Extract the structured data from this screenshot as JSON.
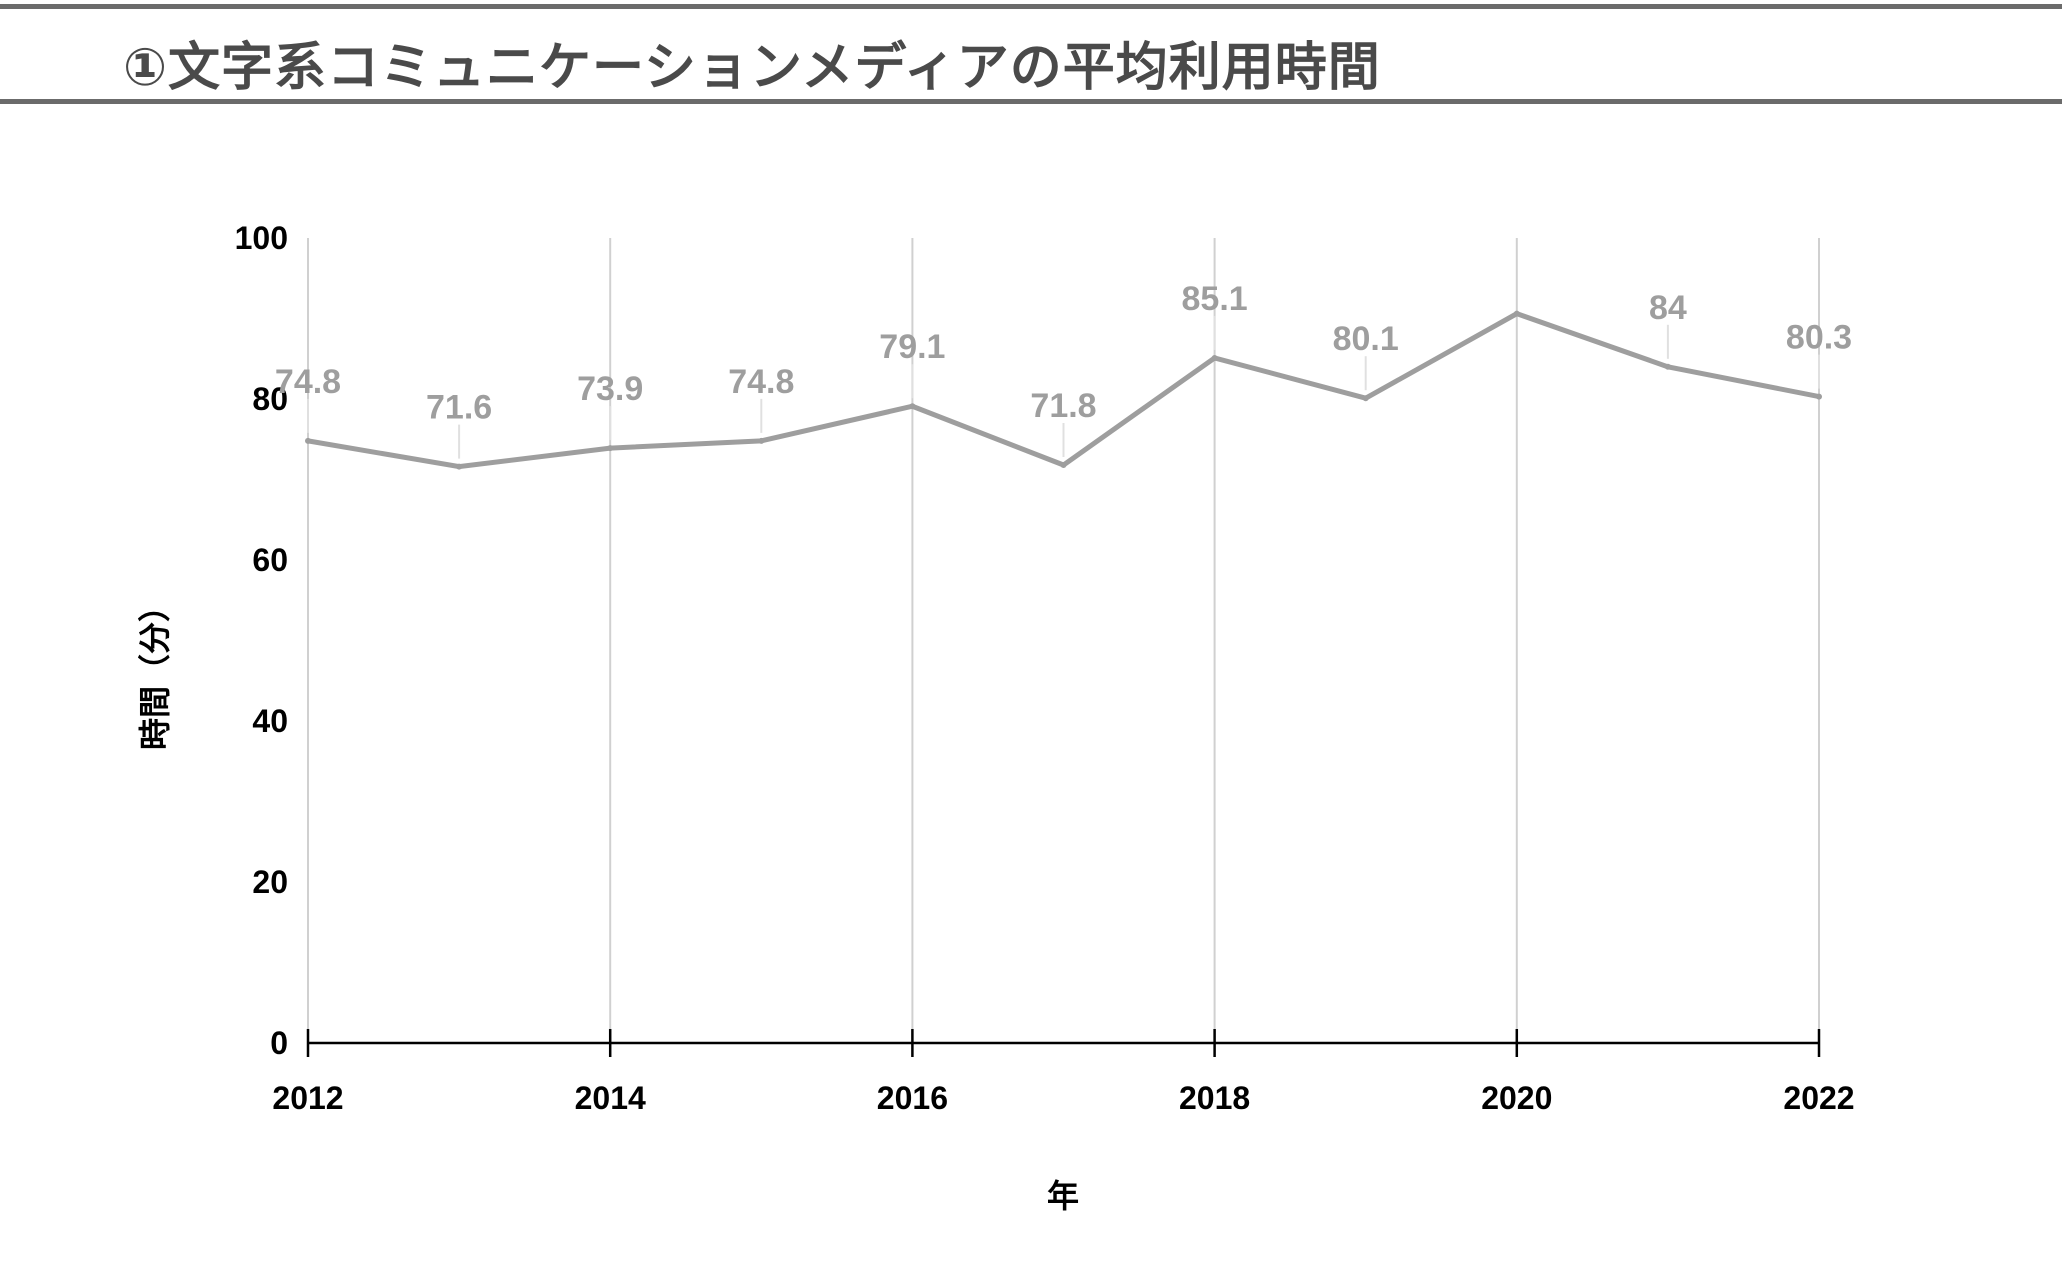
{
  "header": {
    "title": "①文字系コミュニケーションメディアの平均利用時間"
  },
  "chart_data": {
    "type": "line",
    "x": [
      2012,
      2013,
      2014,
      2015,
      2016,
      2017,
      2018,
      2019,
      2020,
      2021,
      2022
    ],
    "series": [
      {
        "values": [
          74.8,
          71.6,
          73.9,
          74.8,
          79.1,
          71.8,
          85.1,
          80.1,
          90.6,
          84,
          80.3
        ],
        "data_labels": [
          "74.8",
          "71.6",
          "73.9",
          "74.8",
          "79.1",
          "71.8",
          "85.1",
          "80.1",
          "",
          "84",
          "80.3"
        ]
      }
    ],
    "x_ticks": [
      "2012",
      "2014",
      "2016",
      "2018",
      "2020",
      "2022"
    ],
    "y_ticks": [
      "0",
      "20",
      "40",
      "60",
      "80",
      "100"
    ],
    "xlabel": "年",
    "ylabel": "時間（分）",
    "xlim": [
      2012,
      2022
    ],
    "ylim": [
      0,
      100
    ],
    "grid": "vertical",
    "colors": {
      "line": "#9e9e9e",
      "data_label": "#9e9e9e",
      "grid": "#d0d0d0",
      "axis": "#000000",
      "title": "#4a4a4a",
      "title_rule": "#6b6b6b"
    }
  }
}
